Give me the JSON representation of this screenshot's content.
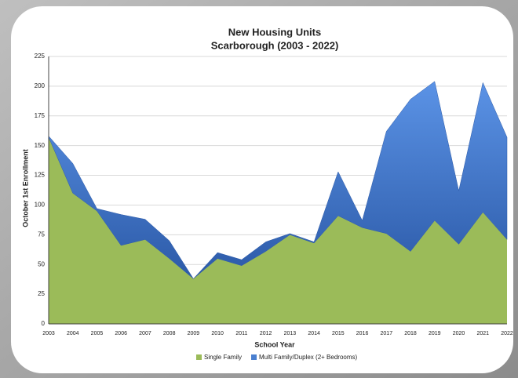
{
  "chart_data": {
    "type": "stacked_area",
    "title": "New Housing Units",
    "subtitle": "Scarborough (2003 - 2022)",
    "y_label": "October 1st Enrollment",
    "x_label": "School Year",
    "categories": [
      "2003",
      "2004",
      "2005",
      "2006",
      "2007",
      "2008",
      "2009",
      "2010",
      "2011",
      "2012",
      "2013",
      "2014",
      "2015",
      "2016",
      "2017",
      "2018",
      "2019",
      "2020",
      "2021",
      "2022"
    ],
    "series": [
      {
        "name": "Single Family",
        "color": "#9bbb59",
        "values": [
          157,
          110,
          95,
          66,
          71,
          55,
          38,
          55,
          49,
          61,
          75,
          68,
          91,
          81,
          76,
          61,
          87,
          67,
          94,
          71
        ]
      },
      {
        "name": "Multi Family/Duplex (2+ Bedrooms)",
        "color": "#4a7fd0",
        "values": [
          1,
          25,
          2,
          26,
          17,
          15,
          0,
          5,
          5,
          8,
          1,
          1,
          37,
          6,
          86,
          128,
          117,
          45,
          109,
          86
        ]
      }
    ],
    "ylim": [
      0,
      225
    ],
    "yticks": [
      0,
      25,
      50,
      75,
      100,
      125,
      150,
      175,
      200,
      225
    ],
    "grid": true
  }
}
